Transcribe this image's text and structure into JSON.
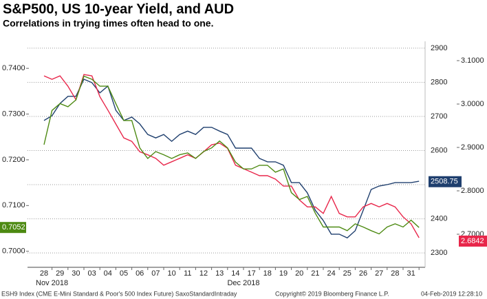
{
  "chart_data": {
    "type": "line",
    "title": "S&P500, US 10-year Yield, and AUD",
    "subtitle": "Correlations in trying times often head to one.",
    "categories": [
      "28",
      null,
      "29",
      null,
      "30",
      null,
      "03",
      null,
      "04",
      null,
      "05",
      null,
      "06",
      null,
      "07",
      null,
      "10",
      null,
      "11",
      null,
      "12",
      null,
      "13",
      null,
      "14",
      null,
      "17",
      null,
      "18",
      null,
      "19",
      null,
      "20",
      null,
      "21",
      null,
      "24",
      null,
      "25",
      null,
      "26",
      null,
      "27",
      null,
      "28",
      null,
      "31",
      null
    ],
    "month_labels": [
      "Nov 2018",
      "Dec 2018"
    ],
    "ylim": [
      0.698,
      0.7456
    ],
    "yticks": [
      {
        "value": 0.7,
        "label": "0.7000"
      },
      {
        "value": 0.71,
        "label": "0.7100"
      },
      {
        "value": 0.72,
        "label": "0.7200"
      },
      {
        "value": 0.73,
        "label": "0.7300"
      },
      {
        "value": 0.74,
        "label": "0.7400"
      }
    ],
    "y2lim": [
      2278,
      2916
    ],
    "y2ticks": [
      2300,
      2400,
      2500,
      2600,
      2700,
      2800,
      2900
    ],
    "y3lim": [
      2.6397,
      3.1413
    ],
    "y3ticks": [
      {
        "value": 2.7,
        "label": "2.7000"
      },
      {
        "value": 2.8,
        "label": "2.8000"
      },
      {
        "value": 2.9,
        "label": "2.9000"
      },
      {
        "value": 3.0,
        "label": "3.0000"
      },
      {
        "value": 3.1,
        "label": "3.1000"
      }
    ],
    "grid": true,
    "series": [
      {
        "name": "S&P500",
        "color": "#1f3f6e",
        "axis": "y2",
        "last_value": 2508.75,
        "values": [
          2688,
          2702,
          2738,
          2759,
          2759,
          2809,
          2799,
          2769,
          2789,
          2718,
          2688,
          2698,
          2678,
          2647,
          2637,
          2647,
          2627,
          2647,
          2657,
          2647,
          2668,
          2668,
          2657,
          2647,
          2607,
          2607,
          2607,
          2577,
          2567,
          2567,
          2557,
          2506,
          2506,
          2476,
          2425,
          2395,
          2355,
          2355,
          2344,
          2365,
          2425,
          2486,
          2496,
          2500,
          2506,
          2506,
          2506,
          2510
        ]
      },
      {
        "name": "US 10-year Yield",
        "color": "#e8264a",
        "axis": "y3",
        "last_value": 2.6842,
        "values": [
          3.065,
          3.057,
          3.065,
          3.041,
          3.01,
          3.068,
          3.065,
          3.017,
          2.986,
          2.954,
          2.922,
          2.914,
          2.89,
          2.883,
          2.875,
          2.859,
          2.867,
          2.875,
          2.883,
          2.875,
          2.89,
          2.906,
          2.91,
          2.898,
          2.859,
          2.851,
          2.843,
          2.835,
          2.835,
          2.827,
          2.811,
          2.811,
          2.779,
          2.763,
          2.763,
          2.748,
          2.787,
          2.748,
          2.74,
          2.74,
          2.763,
          2.771,
          2.763,
          2.771,
          2.763,
          2.74,
          2.724,
          2.692
        ]
      },
      {
        "name": "AUD",
        "color": "#4d8a12",
        "axis": "y",
        "last_value": 0.7052,
        "values": [
          0.7233,
          0.7308,
          0.7323,
          0.7316,
          0.7331,
          0.7383,
          0.7376,
          0.7361,
          0.7361,
          0.7323,
          0.7286,
          0.7286,
          0.7226,
          0.7203,
          0.7218,
          0.7211,
          0.7203,
          0.7211,
          0.7215,
          0.7203,
          0.7218,
          0.7226,
          0.7241,
          0.7226,
          0.7195,
          0.718,
          0.718,
          0.7188,
          0.7188,
          0.7173,
          0.718,
          0.7128,
          0.7113,
          0.712,
          0.7083,
          0.7053,
          0.7053,
          0.7053,
          0.7045,
          0.706,
          0.7053,
          0.7045,
          0.7038,
          0.7053,
          0.706,
          0.7053,
          0.7068,
          0.7052
        ]
      }
    ],
    "footer": {
      "source": "ESH9 Index (CME E-Mini Standard & Poor's 500 Index Future) SaxoStandardIntraday",
      "copyright": "Copyright© 2019 Bloomberg Finance L.P.",
      "timestamp": "04-Feb-2019 12:28:10"
    }
  }
}
